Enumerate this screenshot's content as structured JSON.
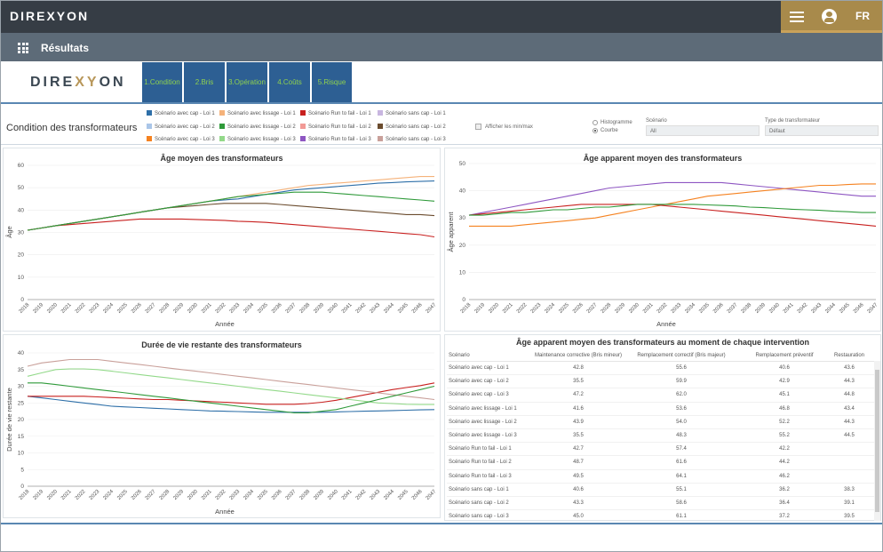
{
  "app": {
    "brand": "DIREXYON",
    "lang": "FR",
    "page": "Résultats"
  },
  "tabs": [
    "1.Condition",
    "2.Bris",
    "3.Opération",
    "4.Coûts",
    "5.Risque"
  ],
  "filters": {
    "title": "Condition des transformateurs",
    "legend": [
      "Scénario avec cap - Loi 1",
      "Scénario avec lissage - Loi 1",
      "Scénario Run to fail - Loi 1",
      "Scénario sans cap - Loi 1",
      "Scénario avec cap - Loi 2",
      "Scénario avec lissage - Loi 2",
      "Scénario Run to fail - Loi 2",
      "Scénario sans cap - Loi 2",
      "Scénario avec cap - Loi 3",
      "Scénario avec lissage - Loi 3",
      "Scénario Run to fail - Loi 3",
      "Scénario sans cap - Loi 3"
    ],
    "legend_colors": [
      "#2e6fa8",
      "#f5b27a",
      "#c8201f",
      "#c8b6e0",
      "#aac6e8",
      "#2f9a3a",
      "#f29a96",
      "#6b4c2e",
      "#f58220",
      "#93d98a",
      "#8e56c2",
      "#c9a09a"
    ],
    "minmax_label": "Afficher les min/max",
    "radio": [
      "Histogramme",
      "Courbe"
    ],
    "scenario_label": "Scénario",
    "scenario_value": "All",
    "type_label": "Type de transformateur",
    "type_value": "Défaut"
  },
  "chart_data": [
    {
      "type": "line",
      "title": "Âge moyen des transformateurs",
      "xlabel": "Année",
      "ylabel": "Âge",
      "ylim": [
        0,
        60
      ],
      "yticks": [
        0,
        10,
        20,
        30,
        40,
        50,
        60
      ],
      "x": [
        "2018",
        "2019",
        "2020",
        "2021",
        "2022",
        "2023",
        "2024",
        "2025",
        "2026",
        "2027",
        "2028",
        "2029",
        "2030",
        "2031",
        "2032",
        "2033",
        "2034",
        "2035",
        "2036",
        "2037",
        "2038",
        "2039",
        "2040",
        "2041",
        "2042",
        "2043",
        "2044",
        "2045",
        "2046",
        "2047"
      ],
      "series": [
        {
          "name": "Scénario avec cap - Loi 1",
          "values": [
            31,
            32,
            33,
            34,
            35,
            36,
            37,
            38,
            39,
            40,
            41,
            42,
            43,
            44,
            44.5,
            45,
            46,
            47,
            48,
            49,
            49.5,
            50,
            50.5,
            51,
            51.5,
            52,
            52.3,
            52.6,
            52.8,
            53
          ]
        },
        {
          "name": "Scénario Run to fail - Loi 1",
          "values": [
            31,
            32,
            33,
            33.5,
            34,
            34.5,
            35,
            35.5,
            36,
            36,
            36,
            36,
            35.8,
            35.6,
            35.4,
            35,
            34.8,
            34.5,
            34,
            33.5,
            33,
            32.5,
            32,
            31.5,
            31,
            30.5,
            30,
            29.5,
            29,
            28
          ]
        },
        {
          "name": "Scénario avec lissage - Loi 1",
          "values": [
            31,
            32,
            33,
            34,
            35,
            36,
            37,
            38,
            39,
            40,
            41,
            42,
            43,
            44,
            45,
            46,
            47,
            48,
            49,
            50,
            51,
            51.5,
            52,
            52.5,
            53,
            53.5,
            54,
            54.5,
            55,
            55
          ]
        },
        {
          "name": "Scénario sans cap - Loi 2",
          "values": [
            31,
            32,
            33,
            34,
            35,
            36,
            37,
            38,
            39,
            40,
            41,
            41.5,
            42,
            42.5,
            43,
            43,
            43,
            43,
            42.5,
            42,
            41.5,
            41,
            40.5,
            40,
            39.5,
            39,
            38.5,
            38,
            38,
            37.5
          ]
        },
        {
          "name": "Scénario avec lissage - Loi 2",
          "values": [
            31,
            32,
            33,
            34,
            35,
            36,
            37,
            38,
            39,
            40,
            41,
            42,
            43,
            44,
            45,
            46,
            46.5,
            47,
            47.5,
            48,
            48,
            48,
            47.5,
            47,
            46.5,
            46,
            45.5,
            45,
            44.5,
            44
          ]
        }
      ]
    },
    {
      "type": "line",
      "title": "Âge apparent moyen des transformateurs",
      "xlabel": "Année",
      "ylabel": "Âge apparent",
      "ylim": [
        0,
        50
      ],
      "yticks": [
        0,
        10,
        20,
        30,
        40,
        50
      ],
      "x": [
        "2018",
        "2019",
        "2020",
        "2021",
        "2022",
        "2023",
        "2024",
        "2025",
        "2026",
        "2027",
        "2028",
        "2029",
        "2030",
        "2031",
        "2032",
        "2033",
        "2034",
        "2035",
        "2036",
        "2037",
        "2038",
        "2039",
        "2040",
        "2041",
        "2042",
        "2043",
        "2044",
        "2045",
        "2046",
        "2047"
      ],
      "series": [
        {
          "name": "Scénario Run to fail - Loi 3",
          "values": [
            31,
            32,
            33,
            34,
            35,
            36,
            37,
            38,
            39,
            40,
            41,
            41.5,
            42,
            42.5,
            43,
            43,
            43,
            43,
            43,
            42.5,
            42,
            41.5,
            41,
            40.5,
            40,
            39.5,
            39,
            38.5,
            38,
            38
          ]
        },
        {
          "name": "Scénario avec cap - Loi 3",
          "values": [
            27,
            27,
            27,
            27,
            27.5,
            28,
            28.5,
            29,
            29.5,
            30,
            31,
            32,
            33,
            34,
            35,
            36,
            37,
            38,
            38.5,
            39,
            39.5,
            40,
            40.5,
            41,
            41.5,
            42,
            42,
            42.3,
            42.5,
            42.5
          ]
        },
        {
          "name": "Scénario Run to fail - Loi 1",
          "values": [
            31,
            31.5,
            32,
            32.5,
            33,
            33.5,
            34,
            34.5,
            35,
            35,
            35,
            35,
            35,
            35,
            34.5,
            34,
            33.5,
            33,
            32.5,
            32,
            31.5,
            31,
            30.5,
            30,
            29.5,
            29,
            28.5,
            28,
            27.5,
            27
          ]
        },
        {
          "name": "Scénario avec lissage - Loi 2",
          "values": [
            31,
            31,
            31.5,
            32,
            32,
            32.5,
            33,
            33,
            33.5,
            34,
            34,
            34.5,
            35,
            35,
            35,
            35,
            35,
            34.8,
            34.6,
            34.4,
            34,
            33.8,
            33.5,
            33.2,
            33,
            32.8,
            32.5,
            32.3,
            32,
            32
          ]
        }
      ]
    },
    {
      "type": "line",
      "title": "Durée de vie restante des transformateurs",
      "xlabel": "Année",
      "ylabel": "Durée de vie restante",
      "ylim": [
        0,
        40
      ],
      "yticks": [
        0,
        5,
        10,
        15,
        20,
        25,
        30,
        35,
        40
      ],
      "x": [
        "2018",
        "2019",
        "2020",
        "2021",
        "2022",
        "2023",
        "2024",
        "2025",
        "2026",
        "2027",
        "2028",
        "2029",
        "2030",
        "2031",
        "2032",
        "2033",
        "2034",
        "2035",
        "2036",
        "2037",
        "2038",
        "2039",
        "2040",
        "2041",
        "2042",
        "2043",
        "2044",
        "2045",
        "2046",
        "2047"
      ],
      "series": [
        {
          "name": "Scénario avec cap - Loi 1",
          "values": [
            27,
            26.5,
            26,
            25.5,
            25,
            24.5,
            24,
            23.8,
            23.6,
            23.4,
            23.2,
            23,
            22.8,
            22.6,
            22.5,
            22.4,
            22.3,
            22.2,
            22.2,
            22.2,
            22.2,
            22.2,
            22.3,
            22.4,
            22.5,
            22.6,
            22.7,
            22.8,
            22.9,
            23
          ]
        },
        {
          "name": "Scénario Run to fail - Loi 1",
          "values": [
            27,
            27,
            27,
            27,
            27,
            26.8,
            26.6,
            26.4,
            26.2,
            26,
            26,
            25.8,
            25.6,
            25.4,
            25.2,
            25,
            24.8,
            24.6,
            24.6,
            24.6,
            24.8,
            25.2,
            25.8,
            26.6,
            27.4,
            28.2,
            29,
            29.6,
            30.2,
            31
          ]
        },
        {
          "name": "Scénario avec lissage - Loi 3",
          "values": [
            33,
            34,
            35,
            35.2,
            35.2,
            35,
            34.5,
            34,
            33.5,
            33,
            32.5,
            32,
            31.5,
            31,
            30.5,
            30,
            29.5,
            29,
            28.5,
            28,
            27.5,
            27,
            26.5,
            26,
            25.5,
            25,
            24.8,
            24.6,
            24.5,
            24.5
          ]
        },
        {
          "name": "Scénario sans cap - Loi 3",
          "values": [
            36,
            37,
            37.5,
            38,
            38,
            38,
            37.5,
            37,
            36.5,
            36,
            35.5,
            35,
            34.5,
            34,
            33.5,
            33,
            32.5,
            32,
            31.5,
            31,
            30.5,
            30,
            29.5,
            29,
            28.5,
            28,
            27.5,
            27,
            26.5,
            26
          ]
        },
        {
          "name": "Scénario avec lissage - Loi 2",
          "values": [
            31,
            31,
            30.5,
            30,
            29.5,
            29,
            28.5,
            28,
            27.5,
            27,
            26.5,
            26,
            25.5,
            25,
            24.5,
            24,
            23.5,
            23,
            22.5,
            22,
            22,
            22.5,
            23,
            24,
            25,
            26,
            27,
            28,
            29,
            30
          ]
        }
      ]
    }
  ],
  "table": {
    "title": "Âge apparent moyen des transformateurs au moment de chaque intervention",
    "headers": [
      "Scénario",
      "Maintenance corrective (Bris mineur)",
      "Remplacement correctif (Bris majeur)",
      "Remplacement préventif",
      "Restauration"
    ],
    "rows": [
      [
        "Scénario avec cap - Loi 1",
        "42.8",
        "55.6",
        "40.6",
        "43.6"
      ],
      [
        "Scénario avec cap - Loi 2",
        "35.5",
        "59.9",
        "42.9",
        "44.3"
      ],
      [
        "Scénario avec cap - Loi 3",
        "47.2",
        "62.0",
        "45.1",
        "44.8"
      ],
      [
        "Scénario avec lissage - Loi 1",
        "41.6",
        "53.6",
        "46.8",
        "43.4"
      ],
      [
        "Scénario avec lissage - Loi 2",
        "43.9",
        "54.0",
        "52.2",
        "44.3"
      ],
      [
        "Scénario avec lissage - Loi 3",
        "35.5",
        "48.3",
        "55.2",
        "44.5"
      ],
      [
        "Scénario Run to fail - Loi 1",
        "42.7",
        "57.4",
        "42.2",
        ""
      ],
      [
        "Scénario Run to fail - Loi 2",
        "48.7",
        "61.6",
        "44.2",
        ""
      ],
      [
        "Scénario Run to fail - Loi 3",
        "49.5",
        "64.1",
        "46.2",
        ""
      ],
      [
        "Scénario sans cap - Loi 1",
        "40.6",
        "55.1",
        "36.2",
        "38.3"
      ],
      [
        "Scénario sans cap - Loi 2",
        "43.3",
        "58.6",
        "36.4",
        "39.1"
      ],
      [
        "Scénario sans cap - Loi 3",
        "45.0",
        "61.1",
        "37.2",
        "39.5"
      ]
    ]
  }
}
